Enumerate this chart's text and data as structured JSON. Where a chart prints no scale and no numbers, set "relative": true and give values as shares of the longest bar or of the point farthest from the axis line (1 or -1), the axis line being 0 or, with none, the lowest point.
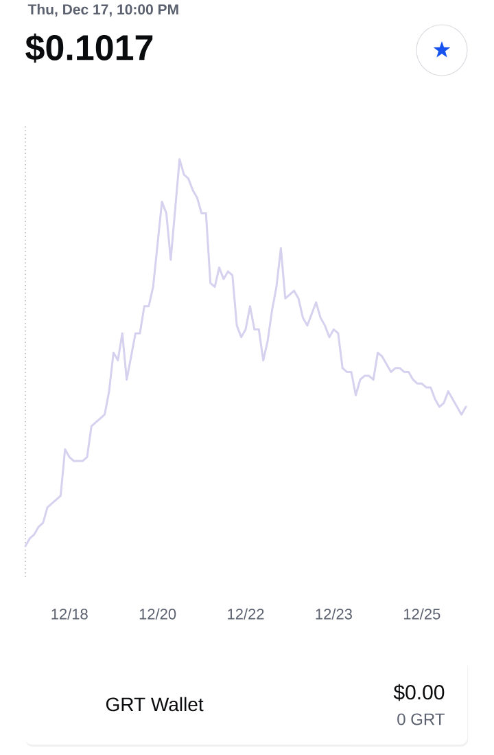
{
  "chart_data": {
    "type": "line",
    "title": "Thu, Dec 17, 10:00 PM",
    "subtitle": "$0.1017",
    "relative": true,
    "categories": [
      null,
      null,
      null,
      null,
      null,
      null,
      null,
      null,
      null,
      null,
      "12/18",
      null,
      null,
      null,
      null,
      null,
      null,
      null,
      null,
      null,
      null,
      null,
      null,
      null,
      null,
      null,
      null,
      null,
      null,
      null,
      "12/20",
      null,
      null,
      null,
      null,
      null,
      null,
      null,
      null,
      null,
      null,
      null,
      null,
      null,
      null,
      null,
      null,
      null,
      null,
      null,
      "12/22",
      null,
      null,
      null,
      null,
      null,
      null,
      null,
      null,
      null,
      null,
      null,
      null,
      null,
      null,
      null,
      null,
      null,
      null,
      null,
      "12/23",
      null,
      null,
      null,
      null,
      null,
      null,
      null,
      null,
      null,
      null,
      null,
      null,
      null,
      null,
      null,
      null,
      null,
      null,
      null,
      "12/25",
      null,
      null,
      null,
      null,
      null,
      null,
      null,
      null,
      null,
      null
    ],
    "series": [
      {
        "color": "#d5d1ee",
        "values": [
          0,
          0.02,
          0.03,
          0.05,
          0.06,
          0.1,
          0.11,
          0.12,
          0.13,
          0.25,
          0.23,
          0.22,
          0.22,
          0.22,
          0.23,
          0.31,
          0.32,
          0.33,
          0.34,
          0.4,
          0.5,
          0.48,
          0.55,
          0.43,
          0.49,
          0.55,
          0.55,
          0.62,
          0.62,
          0.67,
          0.78,
          0.89,
          0.86,
          0.74,
          0.87,
          1,
          0.96,
          0.95,
          0.92,
          0.9,
          0.86,
          0.86,
          0.68,
          0.67,
          0.72,
          0.69,
          0.71,
          0.7,
          0.57,
          0.54,
          0.56,
          0.62,
          0.56,
          0.56,
          0.48,
          0.53,
          0.61,
          0.67,
          0.77,
          0.64,
          0.65,
          0.66,
          0.64,
          0.59,
          0.57,
          0.6,
          0.63,
          0.59,
          0.57,
          0.54,
          0.56,
          0.55,
          0.46,
          0.45,
          0.45,
          0.39,
          0.43,
          0.44,
          0.44,
          0.43,
          0.5,
          0.49,
          0.47,
          0.45,
          0.46,
          0.46,
          0.45,
          0.45,
          0.43,
          0.42,
          0.42,
          0.41,
          0.41,
          0.38,
          0.36,
          0.37,
          0.4,
          0.38,
          0.36,
          0.34,
          0.36
        ]
      }
    ],
    "annotations": [
      "GRT Wallet",
      "$0.00",
      "0 GRT"
    ]
  }
}
